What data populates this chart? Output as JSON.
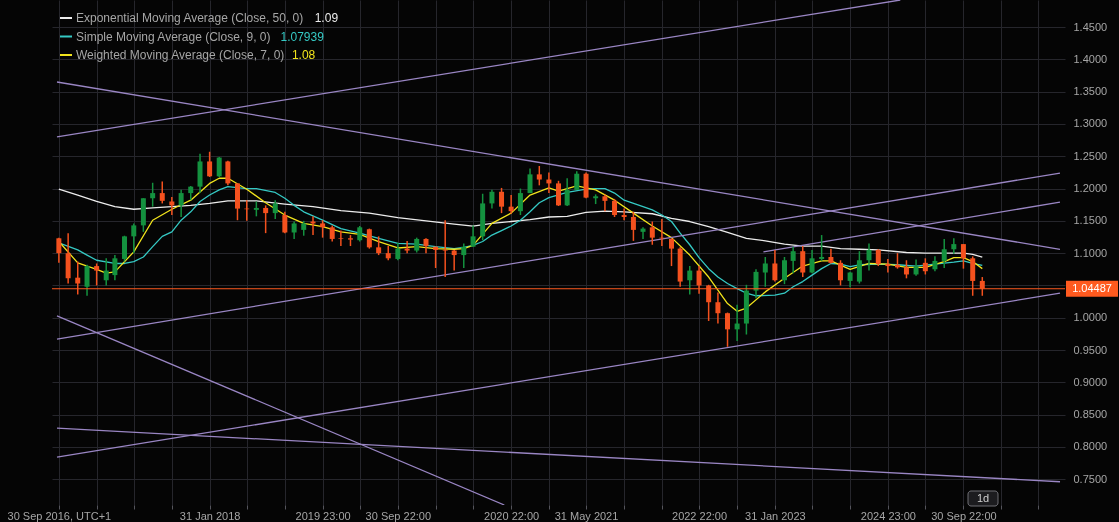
{
  "chart_data": {
    "type": "candlestick",
    "x": [
      "2016-09",
      "2016-10",
      "2016-11",
      "2016-12",
      "2017-01",
      "2017-02",
      "2017-03",
      "2017-04",
      "2017-05",
      "2017-06",
      "2017-07",
      "2017-08",
      "2017-09",
      "2017-10",
      "2017-11",
      "2017-12",
      "2018-01",
      "2018-02",
      "2018-03",
      "2018-04",
      "2018-05",
      "2018-06",
      "2018-07",
      "2018-08",
      "2018-09",
      "2018-10",
      "2018-11",
      "2018-12",
      "2019-01",
      "2019-02",
      "2019-03",
      "2019-04",
      "2019-05",
      "2019-06",
      "2019-07",
      "2019-08",
      "2019-09",
      "2019-10",
      "2019-11",
      "2019-12",
      "2020-01",
      "2020-02",
      "2020-03",
      "2020-04",
      "2020-05",
      "2020-06",
      "2020-07",
      "2020-08",
      "2020-09",
      "2020-10",
      "2020-11",
      "2020-12",
      "2021-01",
      "2021-02",
      "2021-03",
      "2021-04",
      "2021-05",
      "2021-06",
      "2021-07",
      "2021-08",
      "2021-09",
      "2021-10",
      "2021-11",
      "2021-12",
      "2022-01",
      "2022-02",
      "2022-03",
      "2022-04",
      "2022-05",
      "2022-06",
      "2022-07",
      "2022-08",
      "2022-09",
      "2022-10",
      "2022-11",
      "2022-12",
      "2023-01",
      "2023-02",
      "2023-03",
      "2023-04",
      "2023-05",
      "2023-06",
      "2023-07",
      "2023-08",
      "2023-09",
      "2023-10",
      "2023-11",
      "2023-12",
      "2024-01",
      "2024-02",
      "2024-03",
      "2024-04",
      "2024-05",
      "2024-06",
      "2024-07",
      "2024-08",
      "2024-09",
      "2024-10",
      "2024-11"
    ],
    "ohlc": [
      [
        1.123,
        1.124,
        1.085,
        1.1
      ],
      [
        1.1,
        1.131,
        1.053,
        1.061
      ],
      [
        1.062,
        1.087,
        1.036,
        1.053
      ],
      [
        1.048,
        1.082,
        1.034,
        1.08
      ],
      [
        1.08,
        1.084,
        1.05,
        1.073
      ],
      [
        1.058,
        1.092,
        1.05,
        1.073
      ],
      [
        1.066,
        1.097,
        1.058,
        1.092
      ],
      [
        1.091,
        1.127,
        1.087,
        1.126
      ],
      [
        1.126,
        1.146,
        1.1,
        1.143
      ],
      [
        1.143,
        1.185,
        1.133,
        1.185
      ],
      [
        1.185,
        1.209,
        1.172,
        1.193
      ],
      [
        1.193,
        1.211,
        1.177,
        1.181
      ],
      [
        1.18,
        1.187,
        1.159,
        1.174
      ],
      [
        1.174,
        1.198,
        1.156,
        1.193
      ],
      [
        1.193,
        1.204,
        1.182,
        1.203
      ],
      [
        1.203,
        1.254,
        1.193,
        1.242
      ],
      [
        1.242,
        1.257,
        1.218,
        1.219
      ],
      [
        1.219,
        1.249,
        1.218,
        1.248
      ],
      [
        1.242,
        1.243,
        1.205,
        1.208
      ],
      [
        1.208,
        1.208,
        1.151,
        1.169
      ],
      [
        1.169,
        1.182,
        1.15,
        1.168
      ],
      [
        1.167,
        1.18,
        1.157,
        1.17
      ],
      [
        1.17,
        1.174,
        1.131,
        1.162
      ],
      [
        1.162,
        1.182,
        1.153,
        1.177
      ],
      [
        1.159,
        1.164,
        1.131,
        1.132
      ],
      [
        1.132,
        1.149,
        1.122,
        1.146
      ],
      [
        1.136,
        1.15,
        1.127,
        1.146
      ],
      [
        1.149,
        1.157,
        1.128,
        1.146
      ],
      [
        1.146,
        1.151,
        1.124,
        1.14
      ],
      [
        1.14,
        1.143,
        1.118,
        1.122
      ],
      [
        1.123,
        1.135,
        1.111,
        1.122
      ],
      [
        1.123,
        1.128,
        1.111,
        1.121
      ],
      [
        1.12,
        1.142,
        1.118,
        1.14
      ],
      [
        1.137,
        1.138,
        1.107,
        1.109
      ],
      [
        1.109,
        1.126,
        1.097,
        1.1
      ],
      [
        1.1,
        1.111,
        1.089,
        1.092
      ],
      [
        1.091,
        1.116,
        1.089,
        1.107
      ],
      [
        1.107,
        1.119,
        1.1,
        1.104
      ],
      [
        1.104,
        1.124,
        1.101,
        1.122
      ],
      [
        1.122,
        1.123,
        1.1,
        1.111
      ],
      [
        1.11,
        1.11,
        1.077,
        1.105
      ],
      [
        1.105,
        1.151,
        1.063,
        1.104
      ],
      [
        1.104,
        1.105,
        1.073,
        1.097
      ],
      [
        1.097,
        1.115,
        1.077,
        1.11
      ],
      [
        1.11,
        1.143,
        1.11,
        1.126
      ],
      [
        1.126,
        1.192,
        1.12,
        1.177
      ],
      [
        1.177,
        1.198,
        1.169,
        1.195
      ],
      [
        1.195,
        1.201,
        1.162,
        1.172
      ],
      [
        1.172,
        1.19,
        1.161,
        1.165
      ],
      [
        1.165,
        1.2,
        1.159,
        1.193
      ],
      [
        1.193,
        1.231,
        1.193,
        1.222
      ],
      [
        1.222,
        1.235,
        1.205,
        1.214
      ],
      [
        1.214,
        1.225,
        1.193,
        1.208
      ],
      [
        1.208,
        1.212,
        1.173,
        1.174
      ],
      [
        1.174,
        1.216,
        1.173,
        1.198
      ],
      [
        1.198,
        1.227,
        1.198,
        1.223
      ],
      [
        1.223,
        1.225,
        1.185,
        1.186
      ],
      [
        1.185,
        1.191,
        1.176,
        1.188
      ],
      [
        1.188,
        1.191,
        1.165,
        1.181
      ],
      [
        1.181,
        1.184,
        1.156,
        1.159
      ],
      [
        1.159,
        1.169,
        1.151,
        1.156
      ],
      [
        1.156,
        1.164,
        1.119,
        1.136
      ],
      [
        1.133,
        1.14,
        1.122,
        1.138
      ],
      [
        1.14,
        1.149,
        1.113,
        1.124
      ],
      [
        1.124,
        1.153,
        1.111,
        1.123
      ],
      [
        1.122,
        1.123,
        1.08,
        1.107
      ],
      [
        1.107,
        1.109,
        1.048,
        1.056
      ],
      [
        1.058,
        1.08,
        1.036,
        1.073
      ],
      [
        1.073,
        1.08,
        1.037,
        1.05
      ],
      [
        1.05,
        1.051,
        0.995,
        1.024
      ],
      [
        1.024,
        1.039,
        0.991,
        1.007
      ],
      [
        1.007,
        1.008,
        0.955,
        0.982
      ],
      [
        0.982,
        1.02,
        0.964,
        0.991
      ],
      [
        0.991,
        1.051,
        0.974,
        1.042
      ],
      [
        1.042,
        1.075,
        1.03,
        1.071
      ],
      [
        1.07,
        1.094,
        1.048,
        1.084
      ],
      [
        1.084,
        1.105,
        1.056,
        1.058
      ],
      [
        1.058,
        1.094,
        1.052,
        1.089
      ],
      [
        1.088,
        1.11,
        1.069,
        1.103
      ],
      [
        1.103,
        1.111,
        1.063,
        1.07
      ],
      [
        1.07,
        1.105,
        1.069,
        1.092
      ],
      [
        1.091,
        1.128,
        1.088,
        1.094
      ],
      [
        1.094,
        1.107,
        1.084,
        1.085
      ],
      [
        1.085,
        1.089,
        1.05,
        1.058
      ],
      [
        1.057,
        1.071,
        1.047,
        1.07
      ],
      [
        1.056,
        1.103,
        1.053,
        1.089
      ],
      [
        1.089,
        1.115,
        1.073,
        1.105
      ],
      [
        1.105,
        1.106,
        1.08,
        1.083
      ],
      [
        1.083,
        1.091,
        1.07,
        1.08
      ],
      [
        1.082,
        1.1,
        1.076,
        1.078
      ],
      [
        1.078,
        1.089,
        1.061,
        1.067
      ],
      [
        1.067,
        1.09,
        1.065,
        1.08
      ],
      [
        1.085,
        1.092,
        1.067,
        1.072
      ],
      [
        1.075,
        1.095,
        1.072,
        1.088
      ],
      [
        1.088,
        1.122,
        1.077,
        1.106
      ],
      [
        1.106,
        1.123,
        1.099,
        1.114
      ],
      [
        1.114,
        1.114,
        1.076,
        1.092
      ],
      [
        1.092,
        1.095,
        1.034,
        1.057
      ],
      [
        1.057,
        1.063,
        1.034,
        1.045
      ]
    ],
    "colors": [
      "#f4511e",
      "#f4511e",
      "#f4511e",
      "#14923f",
      "#f4511e",
      "#14923f",
      "#14923f",
      "#14923f",
      "#14923f",
      "#14923f",
      "#14923f",
      "#f4511e",
      "#f4511e",
      "#14923f",
      "#14923f",
      "#14923f",
      "#f4511e",
      "#14923f",
      "#f4511e",
      "#f4511e",
      "#f4511e",
      "#14923f",
      "#f4511e",
      "#14923f",
      "#f4511e",
      "#14923f",
      "#14923f",
      "#f4511e",
      "#f4511e",
      "#f4511e",
      "#f4511e",
      "#f4511e",
      "#14923f",
      "#f4511e",
      "#f4511e",
      "#f4511e",
      "#14923f",
      "#f4511e",
      "#14923f",
      "#f4511e",
      "#f4511e",
      "#f4511e",
      "#f4511e",
      "#14923f",
      "#14923f",
      "#14923f",
      "#14923f",
      "#f4511e",
      "#f4511e",
      "#14923f",
      "#14923f",
      "#f4511e",
      "#f4511e",
      "#f4511e",
      "#14923f",
      "#14923f",
      "#f4511e",
      "#14923f",
      "#f4511e",
      "#f4511e",
      "#f4511e",
      "#f4511e",
      "#14923f",
      "#f4511e",
      "#f4511e",
      "#f4511e",
      "#f4511e",
      "#14923f",
      "#f4511e",
      "#f4511e",
      "#f4511e",
      "#f4511e",
      "#14923f",
      "#14923f",
      "#14923f",
      "#14923f",
      "#f4511e",
      "#14923f",
      "#14923f",
      "#f4511e",
      "#14923f",
      "#14923f",
      "#f4511e",
      "#f4511e",
      "#14923f",
      "#14923f",
      "#14923f",
      "#f4511e",
      "#f4511e",
      "#f4511e",
      "#f4511e",
      "#14923f",
      "#f4511e",
      "#14923f",
      "#14923f",
      "#14923f",
      "#f4511e",
      "#f4511e",
      "#f4511e"
    ],
    "series": [
      {
        "name": "Exponential Moving Average (Close, 50, 0)",
        "type": "line",
        "color": "#ececec",
        "x": [
          "2016-09",
          "2016-11",
          "2017-01",
          "2017-03",
          "2017-05",
          "2017-07",
          "2017-09",
          "2017-11",
          "2018-01",
          "2018-03",
          "2018-06",
          "2018-09",
          "2018-12",
          "2019-03",
          "2019-06",
          "2019-09",
          "2019-12",
          "2020-03",
          "2020-05",
          "2020-07",
          "2020-09",
          "2020-11",
          "2021-01",
          "2021-03",
          "2021-05",
          "2021-07",
          "2021-09",
          "2021-12",
          "2022-02",
          "2022-04",
          "2022-06",
          "2022-08",
          "2022-10",
          "2022-12",
          "2023-02",
          "2023-04",
          "2023-06",
          "2023-08",
          "2023-10",
          "2023-12",
          "2024-03",
          "2024-05",
          "2024-07",
          "2024-09",
          "2024-10",
          "2024-11"
        ],
        "values": [
          1.199,
          1.19,
          1.18,
          1.172,
          1.168,
          1.17,
          1.172,
          1.174,
          1.177,
          1.181,
          1.181,
          1.176,
          1.172,
          1.166,
          1.162,
          1.155,
          1.15,
          1.145,
          1.142,
          1.146,
          1.149,
          1.152,
          1.156,
          1.157,
          1.163,
          1.165,
          1.164,
          1.161,
          1.154,
          1.149,
          1.141,
          1.132,
          1.123,
          1.119,
          1.114,
          1.111,
          1.111,
          1.107,
          1.106,
          1.105,
          1.101,
          1.1,
          1.1,
          1.1,
          1.098,
          1.094
        ]
      },
      {
        "name": "Simple Moving Average (Close, 9, 0)",
        "type": "line",
        "color": "#35c9c4",
        "x": [
          "2016-09",
          "2016-11",
          "2016-12",
          "2017-01",
          "2017-03",
          "2017-04",
          "2017-05",
          "2017-06",
          "2017-07",
          "2017-08",
          "2017-09",
          "2017-10",
          "2017-11",
          "2017-12",
          "2018-01",
          "2018-02",
          "2018-03",
          "2018-05",
          "2018-06",
          "2018-08",
          "2018-09",
          "2018-10",
          "2018-11",
          "2019-01",
          "2019-03",
          "2019-05",
          "2019-07",
          "2019-09",
          "2019-11",
          "2020-01",
          "2020-03",
          "2020-04",
          "2020-05",
          "2020-06",
          "2020-07",
          "2020-08",
          "2020-09",
          "2020-10",
          "2020-11",
          "2020-12",
          "2021-01",
          "2021-03",
          "2021-05",
          "2021-06",
          "2021-07",
          "2021-08",
          "2021-09",
          "2021-11",
          "2021-12",
          "2022-01",
          "2022-02",
          "2022-03",
          "2022-04",
          "2022-05",
          "2022-06",
          "2022-07",
          "2022-08",
          "2022-09",
          "2022-10",
          "2022-11",
          "2023-01",
          "2023-02",
          "2023-03",
          "2023-04",
          "2023-05",
          "2023-06",
          "2023-07",
          "2023-08",
          "2023-09",
          "2023-10",
          "2023-12",
          "2024-02",
          "2024-04",
          "2024-06",
          "2024-08",
          "2024-09",
          "2024-10",
          "2024-11"
        ],
        "values": [
          1.116,
          1.105,
          1.097,
          1.089,
          1.084,
          1.084,
          1.087,
          1.094,
          1.11,
          1.126,
          1.133,
          1.151,
          1.164,
          1.18,
          1.19,
          1.198,
          1.203,
          1.2,
          1.2,
          1.194,
          1.185,
          1.174,
          1.164,
          1.151,
          1.138,
          1.131,
          1.123,
          1.115,
          1.114,
          1.11,
          1.107,
          1.109,
          1.112,
          1.118,
          1.128,
          1.135,
          1.142,
          1.151,
          1.164,
          1.178,
          1.186,
          1.194,
          1.199,
          1.2,
          1.2,
          1.193,
          1.182,
          1.172,
          1.167,
          1.159,
          1.149,
          1.131,
          1.113,
          1.093,
          1.076,
          1.063,
          1.053,
          1.045,
          1.038,
          1.034,
          1.035,
          1.038,
          1.048,
          1.056,
          1.066,
          1.076,
          1.084,
          1.083,
          1.079,
          1.082,
          1.083,
          1.082,
          1.08,
          1.083,
          1.086,
          1.088,
          1.084,
          1.081
        ]
      },
      {
        "name": "Weighted Moving Average (Close, 7, 0)",
        "type": "line",
        "color": "#f2e41c",
        "x": [
          "2016-09",
          "2016-11",
          "2017-01",
          "2017-02",
          "2017-03",
          "2017-05",
          "2017-07",
          "2017-09",
          "2017-11",
          "2018-01",
          "2018-02",
          "2018-03",
          "2018-05",
          "2018-07",
          "2018-09",
          "2018-11",
          "2019-01",
          "2019-03",
          "2019-05",
          "2019-07",
          "2019-09",
          "2019-11",
          "2020-01",
          "2020-03",
          "2020-04",
          "2020-05",
          "2020-07",
          "2020-09",
          "2020-11",
          "2021-01",
          "2021-02",
          "2021-04",
          "2021-06",
          "2021-08",
          "2021-10",
          "2021-12",
          "2022-02",
          "2022-04",
          "2022-06",
          "2022-08",
          "2022-09",
          "2022-10",
          "2022-12",
          "2023-02",
          "2023-04",
          "2023-06",
          "2023-07",
          "2023-09",
          "2023-11",
          "2024-01",
          "2024-03",
          "2024-05",
          "2024-07",
          "2024-08",
          "2024-09",
          "2024-10",
          "2024-11"
        ],
        "values": [
          1.118,
          1.085,
          1.075,
          1.069,
          1.071,
          1.102,
          1.151,
          1.168,
          1.182,
          1.208,
          1.216,
          1.216,
          1.199,
          1.178,
          1.159,
          1.146,
          1.141,
          1.133,
          1.129,
          1.118,
          1.108,
          1.11,
          1.107,
          1.106,
          1.107,
          1.112,
          1.146,
          1.162,
          1.19,
          1.201,
          1.196,
          1.204,
          1.198,
          1.182,
          1.162,
          1.142,
          1.124,
          1.097,
          1.063,
          1.022,
          1.01,
          1.015,
          1.04,
          1.061,
          1.08,
          1.088,
          1.088,
          1.075,
          1.084,
          1.083,
          1.078,
          1.078,
          1.087,
          1.093,
          1.093,
          1.087,
          1.076
        ]
      },
      {
        "type": "line",
        "color": "#9a86c4",
        "x": [
          "2016-08-26",
          "2024-02-10"
        ],
        "values": [
          1.28,
          1.492
        ]
      },
      {
        "type": "line",
        "color": "#9a86c4",
        "x": [
          "2016-08-26",
          "2025-07-10"
        ],
        "values": [
          1.365,
          1.106
        ]
      },
      {
        "type": "line",
        "color": "#9a86c4",
        "x": [
          "2016-08-26",
          "2025-07-10"
        ],
        "values": [
          0.967,
          1.224
        ]
      },
      {
        "type": "line",
        "color": "#9a86c4",
        "x": [
          "2022-11-25",
          "2025-07-10"
        ],
        "values": [
          1.102,
          1.179
        ]
      },
      {
        "type": "line",
        "color": "#9a86c4",
        "x": [
          "2016-08-26",
          "2025-07-10"
        ],
        "values": [
          0.784,
          1.038
        ]
      },
      {
        "type": "line",
        "color": "#9a86c4",
        "x": [
          "2016-08-26",
          "2020-08-10"
        ],
        "values": [
          1.003,
          0.71
        ]
      },
      {
        "type": "line",
        "color": "#9a86c4",
        "x": [
          "2016-08-26",
          "2025-07-10"
        ],
        "values": [
          0.829,
          0.746
        ]
      }
    ],
    "xlim": [
      "2016-08-26",
      "2025-07-10"
    ],
    "xticks": [
      {
        "value": "2016-09",
        "label": "30 Sep 2016, UTC+1"
      },
      {
        "value": "2017-01",
        "label": null
      },
      {
        "value": "2017-05",
        "label": null
      },
      {
        "value": "2017-09",
        "label": null
      },
      {
        "value": "2018-01",
        "label": "31 Jan 2018"
      },
      {
        "value": "2018-05",
        "label": null
      },
      {
        "value": "2018-09",
        "label": null
      },
      {
        "value": "2019-01",
        "label": "2019 23:00"
      },
      {
        "value": "2019-05",
        "label": null
      },
      {
        "value": "2019-09",
        "label": "30 Sep 22:00"
      },
      {
        "value": "2020-01",
        "label": null
      },
      {
        "value": "2020-05",
        "label": null
      },
      {
        "value": "2020-09",
        "label": "2020 22:00"
      },
      {
        "value": "2021-01",
        "label": null
      },
      {
        "value": "2021-05",
        "label": "31 May 2021"
      },
      {
        "value": "2021-09",
        "label": null
      },
      {
        "value": "2022-01",
        "label": null
      },
      {
        "value": "2022-05",
        "label": "2022 22:00"
      },
      {
        "value": "2022-09",
        "label": null
      },
      {
        "value": "2023-01",
        "label": "31 Jan 2023"
      },
      {
        "value": "2023-05",
        "label": null
      },
      {
        "value": "2023-09",
        "label": null
      },
      {
        "value": "2024-01",
        "label": "2024 23:00"
      },
      {
        "value": "2024-05",
        "label": null
      },
      {
        "value": "2024-09",
        "label": "30 Sep 22:00"
      },
      {
        "value": "2025-01",
        "label": null
      },
      {
        "value": "2025-05",
        "label": null
      }
    ],
    "ylim": [
      0.71,
      1.492
    ],
    "yticks": [
      {
        "value": 0.75,
        "label": "0.7500"
      },
      {
        "value": 0.8,
        "label": "0.8000"
      },
      {
        "value": 0.85,
        "label": "0.8500"
      },
      {
        "value": 0.9,
        "label": "0.9000"
      },
      {
        "value": 0.95,
        "label": "0.9500"
      },
      {
        "value": 1.0,
        "label": "1.0000"
      },
      {
        "value": 1.05,
        "label": null
      },
      {
        "value": 1.1,
        "label": "1.1000"
      },
      {
        "value": 1.15,
        "label": "1.1500"
      },
      {
        "value": 1.2,
        "label": "1.2000"
      },
      {
        "value": 1.25,
        "label": "1.2500"
      },
      {
        "value": 1.3,
        "label": "1.3000"
      },
      {
        "value": 1.35,
        "label": "1.3500"
      },
      {
        "value": 1.4,
        "label": "1.4000"
      },
      {
        "value": 1.45,
        "label": "1.4500"
      }
    ],
    "ref_lines": [
      {
        "axis": "y",
        "value": 1.04487,
        "label": "1.04487",
        "color": "#ff5a1f"
      }
    ],
    "annotations": [
      "1.09",
      "1.07939",
      "1.08",
      "1d"
    ],
    "grid": true,
    "legend": "top left"
  }
}
